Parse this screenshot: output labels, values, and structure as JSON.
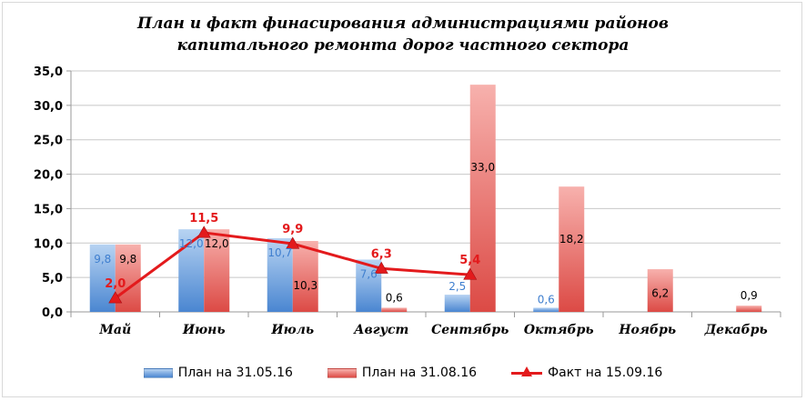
{
  "chart_data": {
    "type": "bar",
    "title": "План и факт финасирования администрациями районов капитального ремонта дорог частного сектора",
    "title_lines": [
      "План и факт финасирования администрациями районов",
      "капитального ремонта дорог частного сектора"
    ],
    "categories": [
      "Май",
      "Июнь",
      "Июль",
      "Август",
      "Сентябрь",
      "Октябрь",
      "Ноябрь",
      "Декабрь"
    ],
    "ylim": [
      0,
      35
    ],
    "yticks": [
      "0,0",
      "5,0",
      "10,0",
      "15,0",
      "20,0",
      "25,0",
      "30,0",
      "35,0"
    ],
    "grid": true,
    "legend_position": "bottom",
    "series": [
      {
        "name": "План на 31.05.16",
        "kind": "bar",
        "color": "#5b9bd5",
        "values": [
          9.8,
          12.0,
          10.7,
          7.6,
          2.5,
          0.6,
          null,
          null
        ],
        "labels": [
          "9,8",
          "12,0",
          "10,7",
          "7,6",
          "2,5",
          "0,6",
          "",
          ""
        ]
      },
      {
        "name": "План на 31.08.16",
        "kind": "bar",
        "color": "#f07470",
        "values": [
          9.8,
          12.0,
          10.3,
          0.6,
          33.0,
          18.2,
          6.2,
          0.9
        ],
        "labels": [
          "9,8",
          "12,0",
          "10,3",
          "0,6",
          "33,0",
          "18,2",
          "6,2",
          "0,9"
        ]
      },
      {
        "name": "Факт на 15.09.16",
        "kind": "line",
        "color": "#e31a1c",
        "values": [
          2.0,
          11.5,
          9.9,
          6.3,
          5.4,
          null,
          null,
          null
        ],
        "labels": [
          "2,0",
          "11,5",
          "9,9",
          "6,3",
          "5,4",
          "",
          "",
          ""
        ]
      }
    ]
  }
}
